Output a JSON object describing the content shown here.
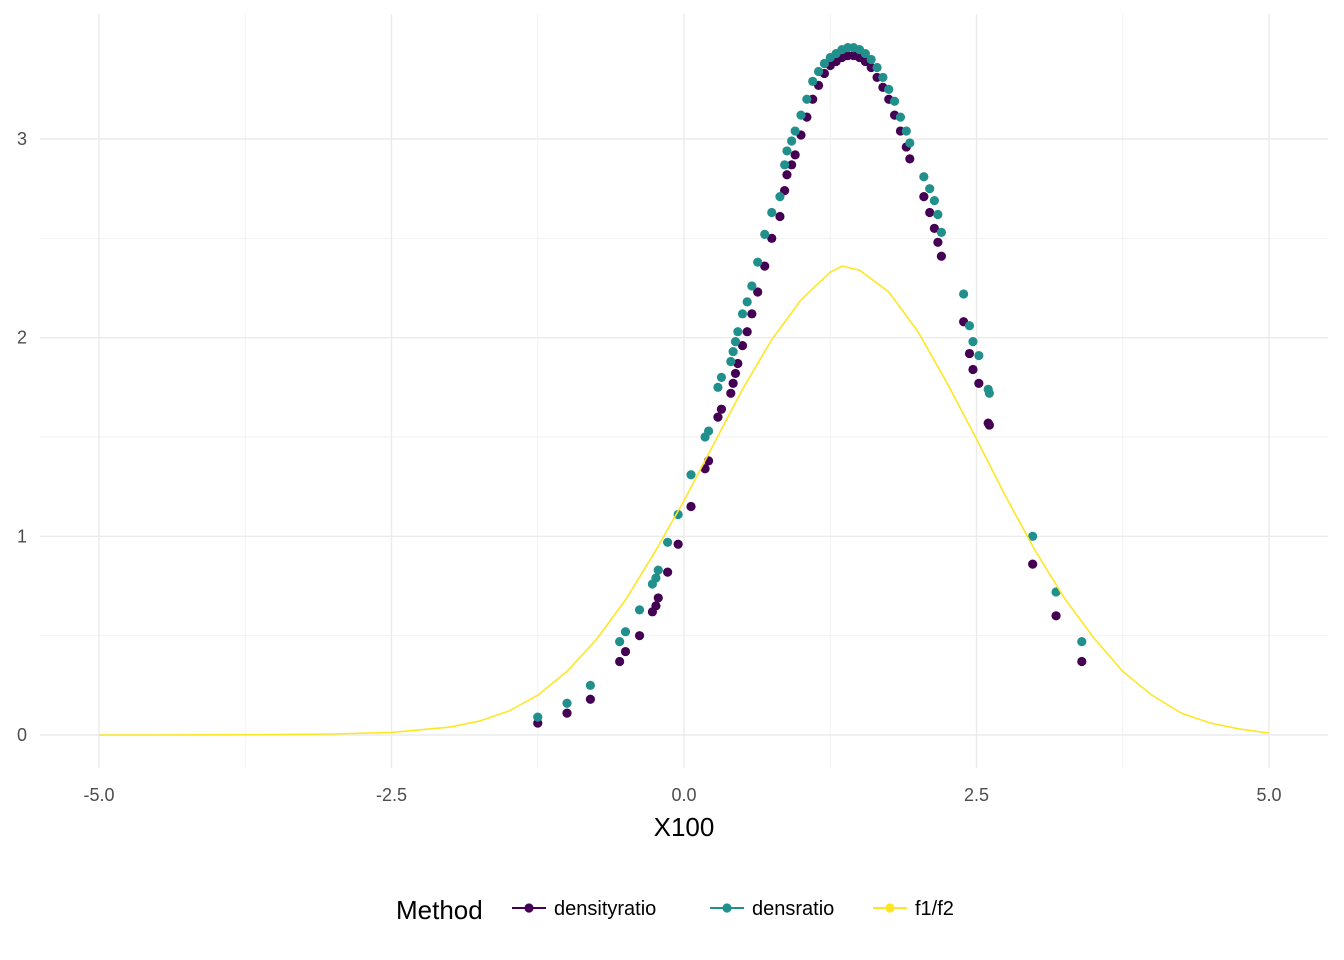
{
  "chart_data": {
    "type": "scatter",
    "title": "",
    "xlabel": "X100",
    "ylabel": "",
    "xlim": [
      -5.0,
      5.0
    ],
    "ylim": [
      0,
      3.45
    ],
    "grid": true,
    "x_ticks": [
      -5.0,
      -2.5,
      0.0,
      2.5,
      5.0
    ],
    "x_tick_labels": [
      "-5.0",
      "-2.5",
      "0.0",
      "2.5",
      "5.0"
    ],
    "y_ticks": [
      0,
      1,
      2,
      3
    ],
    "y_tick_labels": [
      "0",
      "1",
      "2",
      "3"
    ],
    "legend": {
      "title": "Method",
      "placement": "bottom",
      "entries": [
        "densityratio",
        "densratio",
        "f1/f2"
      ]
    },
    "colors": {
      "densityratio": "#440154",
      "densratio": "#21908C",
      "f1/f2": "#FDE725"
    },
    "series": [
      {
        "name": "densityratio",
        "kind": "points",
        "x": [
          -1.25,
          -1.0,
          -0.8,
          -0.55,
          -0.5,
          -0.38,
          -0.27,
          -0.24,
          -0.22,
          -0.14,
          -0.05,
          0.06,
          0.18,
          0.21,
          0.29,
          0.32,
          0.4,
          0.42,
          0.44,
          0.46,
          0.5,
          0.54,
          0.58,
          0.63,
          0.69,
          0.75,
          0.82,
          0.86,
          0.88,
          0.92,
          0.95,
          1.0,
          1.05,
          1.1,
          1.15,
          1.2,
          1.25,
          1.3,
          1.35,
          1.4,
          1.45,
          1.5,
          1.55,
          1.6,
          1.65,
          1.7,
          1.75,
          1.8,
          1.85,
          1.9,
          1.93,
          2.05,
          2.1,
          2.14,
          2.17,
          2.2,
          2.39,
          2.44,
          2.47,
          2.52,
          2.6,
          2.61,
          2.98,
          3.18,
          3.4
        ],
        "y": [
          0.06,
          0.11,
          0.18,
          0.37,
          0.42,
          0.5,
          0.62,
          0.65,
          0.69,
          0.82,
          0.96,
          1.15,
          1.34,
          1.38,
          1.6,
          1.64,
          1.72,
          1.77,
          1.82,
          1.87,
          1.96,
          2.03,
          2.12,
          2.23,
          2.36,
          2.5,
          2.61,
          2.74,
          2.82,
          2.87,
          2.92,
          3.02,
          3.11,
          3.2,
          3.27,
          3.33,
          3.37,
          3.39,
          3.41,
          3.42,
          3.42,
          3.41,
          3.39,
          3.36,
          3.31,
          3.26,
          3.2,
          3.12,
          3.04,
          2.96,
          2.9,
          2.71,
          2.63,
          2.55,
          2.48,
          2.41,
          2.08,
          1.92,
          1.84,
          1.77,
          1.57,
          1.56,
          0.86,
          0.6,
          0.37
        ]
      },
      {
        "name": "densratio",
        "kind": "points",
        "x": [
          -1.25,
          -1.0,
          -0.8,
          -0.55,
          -0.5,
          -0.38,
          -0.27,
          -0.24,
          -0.22,
          -0.14,
          -0.05,
          0.06,
          0.18,
          0.21,
          0.29,
          0.32,
          0.4,
          0.42,
          0.44,
          0.46,
          0.5,
          0.54,
          0.58,
          0.63,
          0.69,
          0.75,
          0.82,
          0.86,
          0.88,
          0.92,
          0.95,
          1.0,
          1.05,
          1.1,
          1.15,
          1.2,
          1.25,
          1.3,
          1.35,
          1.4,
          1.45,
          1.5,
          1.55,
          1.6,
          1.65,
          1.7,
          1.75,
          1.8,
          1.85,
          1.9,
          1.93,
          2.05,
          2.1,
          2.14,
          2.17,
          2.2,
          2.39,
          2.44,
          2.47,
          2.52,
          2.6,
          2.61,
          2.98,
          3.18,
          3.4
        ],
        "y": [
          0.09,
          0.16,
          0.25,
          0.47,
          0.52,
          0.63,
          0.76,
          0.79,
          0.83,
          0.97,
          1.11,
          1.31,
          1.5,
          1.53,
          1.75,
          1.8,
          1.88,
          1.93,
          1.98,
          2.03,
          2.12,
          2.18,
          2.26,
          2.38,
          2.52,
          2.63,
          2.71,
          2.87,
          2.94,
          2.99,
          3.04,
          3.12,
          3.2,
          3.29,
          3.34,
          3.38,
          3.41,
          3.43,
          3.45,
          3.46,
          3.46,
          3.45,
          3.43,
          3.4,
          3.36,
          3.31,
          3.25,
          3.19,
          3.11,
          3.04,
          2.98,
          2.81,
          2.75,
          2.69,
          2.62,
          2.53,
          2.22,
          2.06,
          1.98,
          1.91,
          1.74,
          1.72,
          1.0,
          0.72,
          0.47
        ]
      },
      {
        "name": "f1/f2",
        "kind": "line",
        "x": [
          -5.0,
          -4.5,
          -4.0,
          -3.5,
          -3.0,
          -2.5,
          -2.0,
          -1.75,
          -1.5,
          -1.25,
          -1.0,
          -0.75,
          -0.5,
          -0.25,
          0.0,
          0.25,
          0.5,
          0.75,
          1.0,
          1.25,
          1.35,
          1.5,
          1.75,
          2.0,
          2.25,
          2.5,
          2.75,
          3.0,
          3.25,
          3.5,
          3.75,
          4.0,
          4.25,
          4.5,
          4.75,
          5.0
        ],
        "y": [
          0.0,
          0.0,
          0.001,
          0.002,
          0.005,
          0.013,
          0.04,
          0.07,
          0.12,
          0.2,
          0.32,
          0.48,
          0.68,
          0.92,
          1.18,
          1.46,
          1.74,
          1.99,
          2.19,
          2.33,
          2.36,
          2.34,
          2.23,
          2.03,
          1.77,
          1.49,
          1.2,
          0.93,
          0.69,
          0.49,
          0.32,
          0.2,
          0.11,
          0.06,
          0.03,
          0.01
        ]
      }
    ]
  }
}
